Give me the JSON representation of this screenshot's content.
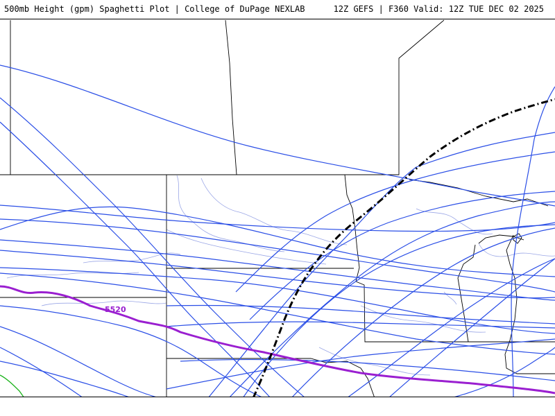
{
  "header": {
    "title": "500mb Height (gpm) Spaghetti Plot | College of DuPage NEXLAB",
    "run_info": "12Z GEFS | F360 Valid: 12Z TUE DEC 02 2025"
  },
  "map": {
    "contour_label": "5520",
    "colors": {
      "member_line": "#2a4ee6",
      "highlight_contour": "#9a1fd0",
      "low_contour": "#1ab21a",
      "climo_line": "#000000",
      "state_border": "#000000",
      "county_river": "#9aa6e6"
    }
  }
}
